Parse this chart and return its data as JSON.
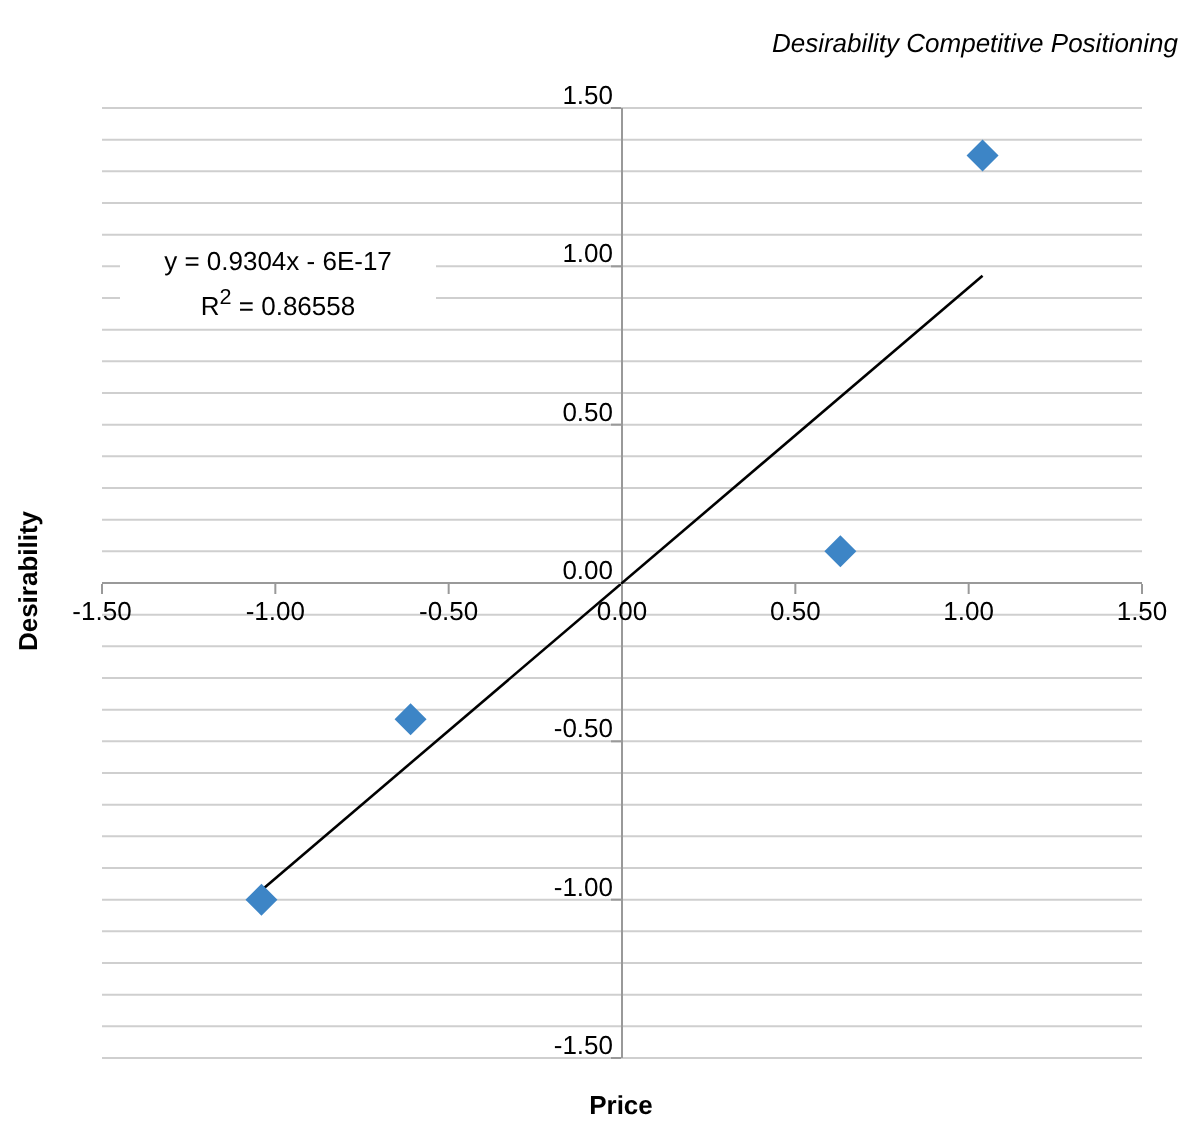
{
  "chart_data": {
    "type": "scatter",
    "title": "Desirability Competitive Positioning",
    "xlabel": "Price",
    "ylabel": "Desirability",
    "annotations": [
      "y = 0.9304x - 6E-17",
      "R$^{2}$ = 0.86558"
    ],
    "x": [
      -1.04,
      -0.61,
      0.63,
      1.04
    ],
    "series": [
      {
        "color": "#3d85c6",
        "marker": "diamond",
        "values": [
          -1.0,
          -0.43,
          0.1,
          1.35
        ]
      },
      {
        "type": "line",
        "color": "#000000",
        "marker": "none",
        "x": [
          -1.04,
          1.04
        ],
        "values": [
          -0.97,
          0.97
        ]
      }
    ],
    "xlim": [
      -1.5,
      1.5
    ],
    "xticks": [
      {
        "value": -1.5,
        "label": "-1.50"
      },
      {
        "value": -1,
        "label": "-1.00"
      },
      {
        "value": -0.5,
        "label": "-0.50"
      },
      {
        "value": 0,
        "label": "0.00"
      },
      {
        "value": 0.5,
        "label": "0.50"
      },
      {
        "value": 1,
        "label": "1.00"
      },
      {
        "value": 1.5,
        "label": "1.50"
      }
    ],
    "ylim": [
      -1.5,
      1.5
    ],
    "yticks": [
      {
        "value": -1.5,
        "label": "-1.50"
      },
      {
        "value": -1.4,
        "label": null
      },
      {
        "value": -1.3,
        "label": null
      },
      {
        "value": -1.2,
        "label": null
      },
      {
        "value": -1.1,
        "label": null
      },
      {
        "value": -1,
        "label": "-1.00"
      },
      {
        "value": -0.9,
        "label": null
      },
      {
        "value": -0.8,
        "label": null
      },
      {
        "value": -0.7,
        "label": null
      },
      {
        "value": -0.6,
        "label": null
      },
      {
        "value": -0.5,
        "label": "-0.50"
      },
      {
        "value": -0.4,
        "label": null
      },
      {
        "value": -0.3,
        "label": null
      },
      {
        "value": -0.2,
        "label": null
      },
      {
        "value": -0.1,
        "label": null
      },
      {
        "value": 0,
        "label": "0.00"
      },
      {
        "value": 0.1,
        "label": null
      },
      {
        "value": 0.2,
        "label": null
      },
      {
        "value": 0.3,
        "label": null
      },
      {
        "value": 0.4,
        "label": null
      },
      {
        "value": 0.5,
        "label": "0.50"
      },
      {
        "value": 0.6,
        "label": null
      },
      {
        "value": 0.7,
        "label": null
      },
      {
        "value": 0.8,
        "label": null
      },
      {
        "value": 0.9,
        "label": null
      },
      {
        "value": 1,
        "label": "1.00"
      },
      {
        "value": 1.1,
        "label": null
      },
      {
        "value": 1.2,
        "label": null
      },
      {
        "value": 1.3,
        "label": null
      },
      {
        "value": 1.4,
        "label": null
      },
      {
        "value": 1.5,
        "label": "1.50"
      }
    ],
    "grid": "y",
    "legend": false
  }
}
